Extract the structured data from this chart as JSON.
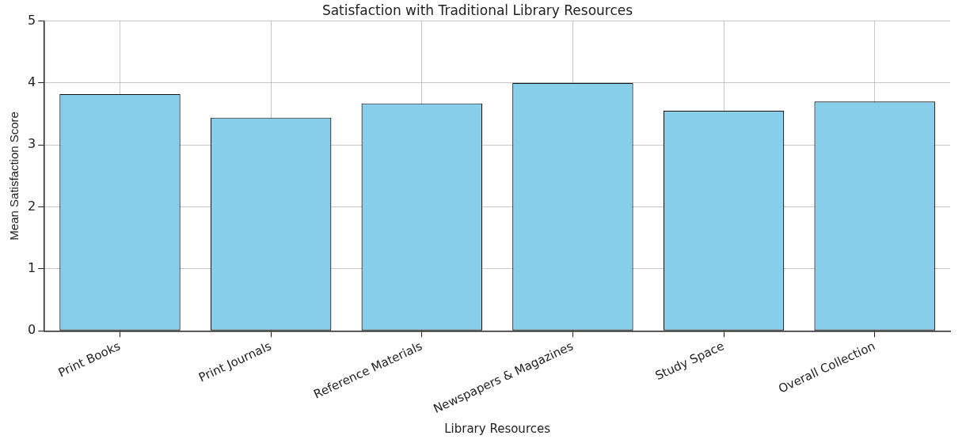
{
  "chart_data": {
    "type": "bar",
    "title": "Satisfaction with Traditional Library Resources",
    "xlabel": "Library Resources",
    "ylabel": "Mean Satisfaction Score",
    "categories": [
      "Print Books",
      "Print Journals",
      "Reference Materials",
      "Newspapers & Magazines",
      "Study Space",
      "Overall Collection"
    ],
    "values": [
      3.82,
      3.44,
      3.67,
      4.0,
      3.55,
      3.7
    ],
    "color": "#87ceeb",
    "ylim": [
      0,
      5
    ],
    "yticks": [
      0,
      1,
      2,
      3,
      4,
      5
    ],
    "grid": true,
    "legend": false
  }
}
